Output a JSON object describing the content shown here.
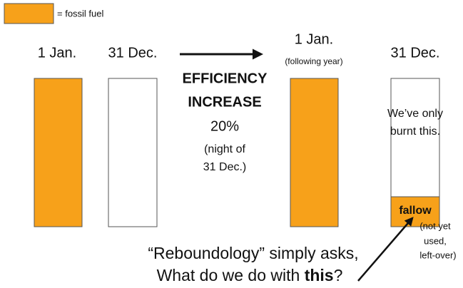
{
  "legend": {
    "label": "= fossil fuel"
  },
  "columns": [
    {
      "date": "1 Jan."
    },
    {
      "date": "31 Dec."
    },
    {
      "date": "1 Jan.",
      "note": "(following year)"
    },
    {
      "date": "31 Dec."
    }
  ],
  "middle": {
    "lines": [
      "EFFICIENCY",
      "INCREASE",
      "20%",
      "(night of",
      "31 Dec.)"
    ]
  },
  "burnt": {
    "lines": [
      "We’ve only",
      "burnt this."
    ]
  },
  "fallow": {
    "label": "fallow",
    "note": [
      "(not yet",
      "used,",
      "left-over)"
    ]
  },
  "bottom": {
    "line1": "“Reboundology” simply asks,",
    "line2": [
      "What do we do with ",
      "this",
      "?"
    ]
  }
}
